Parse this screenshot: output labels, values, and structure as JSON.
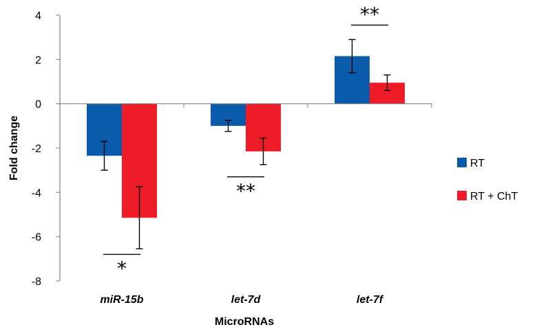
{
  "chart_data": {
    "type": "bar",
    "title": "",
    "xlabel": "MicroRNAs",
    "ylabel": "Fold change",
    "ylim": [
      -8,
      4
    ],
    "yticks": [
      "4",
      "2",
      "0",
      "-2",
      "-4",
      "-6",
      "-8"
    ],
    "categories": [
      "miR-15b",
      "let-7d",
      "let-7f"
    ],
    "series": [
      {
        "name": "RT",
        "color": "#0a5baa",
        "values": [
          -2.35,
          -1.0,
          2.15
        ],
        "error": [
          0.65,
          0.25,
          0.75
        ]
      },
      {
        "name": "RT + ChT",
        "color": "#ee1c27",
        "values": [
          -5.15,
          -2.15,
          0.95
        ],
        "error": [
          1.4,
          0.6,
          0.35
        ]
      }
    ],
    "significance": [
      {
        "category": "miR-15b",
        "label": "*",
        "line_y": -6.8,
        "placement": "below"
      },
      {
        "category": "let-7d",
        "label": "**",
        "line_y": -3.3,
        "placement": "below"
      },
      {
        "category": "let-7f",
        "label": "**",
        "line_y": 3.55,
        "placement": "above"
      }
    ],
    "legend": {
      "position": "right",
      "entries": [
        "RT",
        "RT + ChT"
      ]
    },
    "grid": false
  }
}
